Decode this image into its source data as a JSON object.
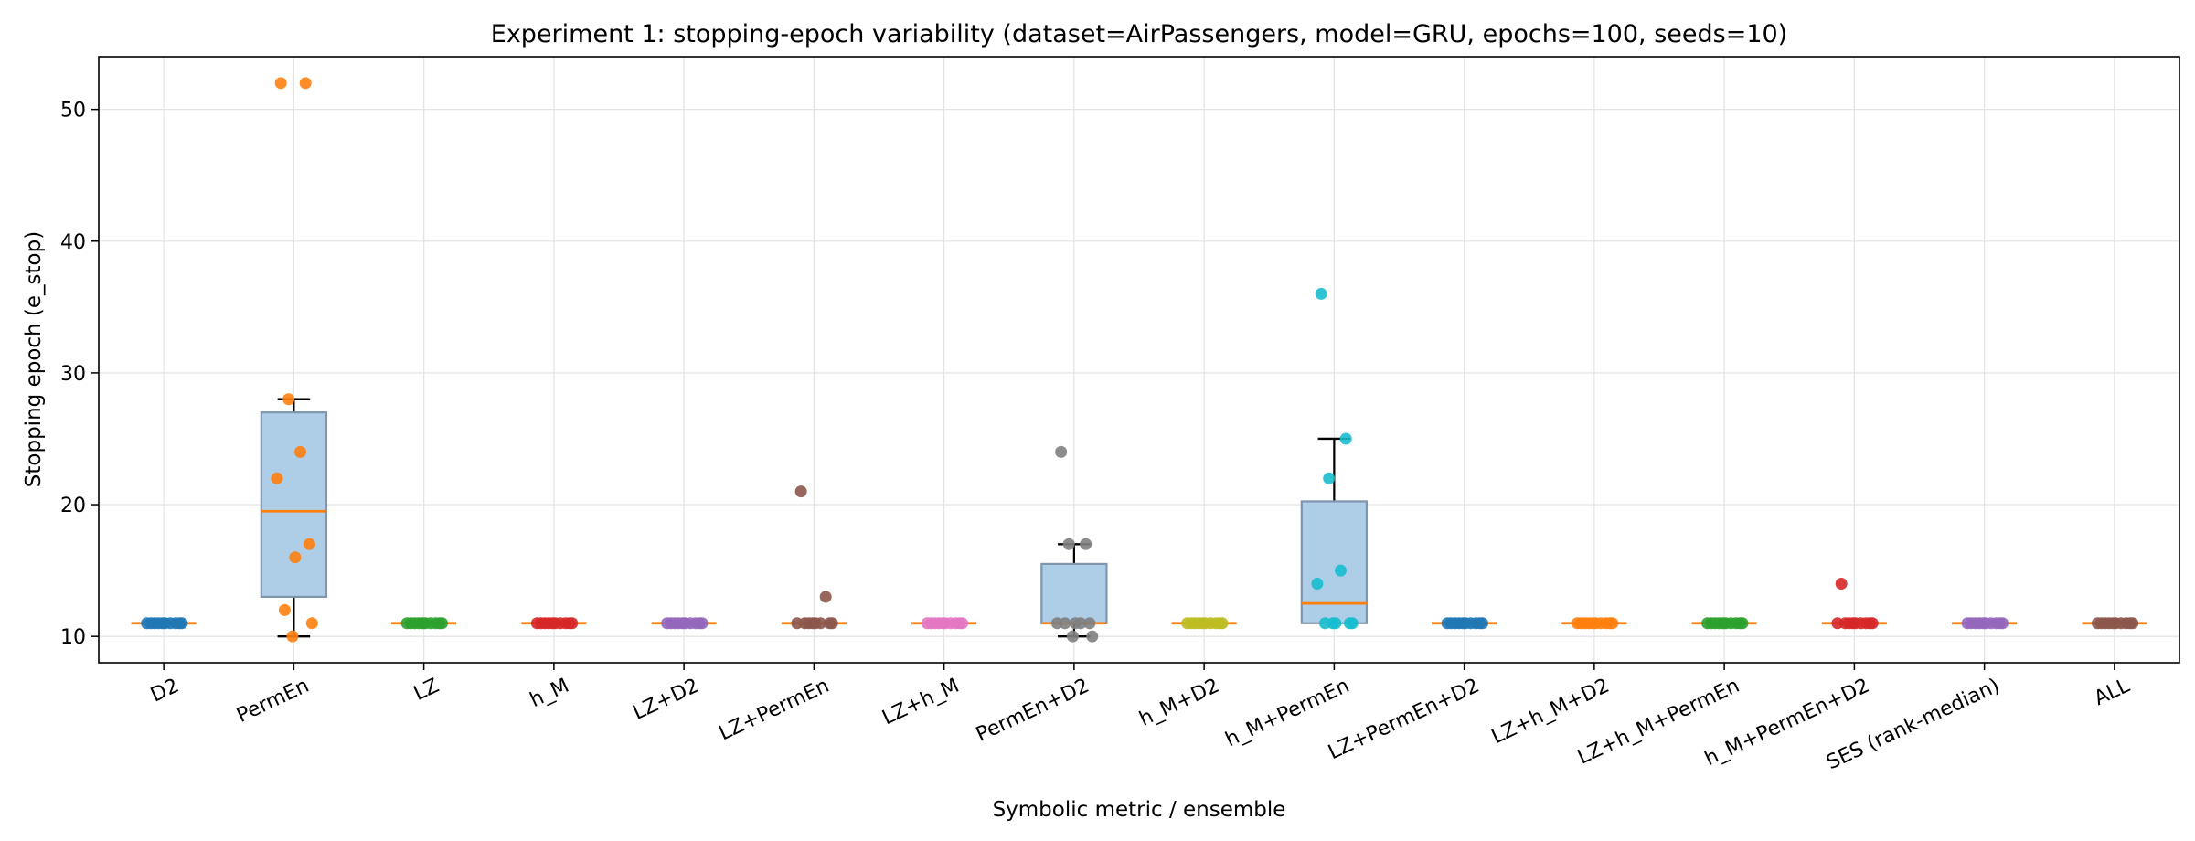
{
  "chart_data": {
    "type": "box",
    "title": "Experiment 1: stopping-epoch variability (dataset=AirPassengers, model=GRU, epochs=100, seeds=10)",
    "xlabel": "Symbolic metric / ensemble",
    "ylabel": "Stopping epoch (e_stop)",
    "ylim": [
      8,
      54
    ],
    "yticks": [
      10,
      20,
      30,
      40,
      50
    ],
    "grid": true,
    "categories": [
      "D2",
      "PermEn",
      "LZ",
      "h_M",
      "LZ+D2",
      "LZ+PermEn",
      "LZ+h_M",
      "PermEn+D2",
      "h_M+D2",
      "h_M+PermEn",
      "LZ+PermEn+D2",
      "LZ+h_M+D2",
      "LZ+h_M+PermEn",
      "h_M+PermEn+D2",
      "SES (rank-median)",
      "ALL"
    ],
    "boxes": [
      {
        "q1": 11,
        "median": 11,
        "q3": 11,
        "whislo": 11,
        "whishi": 11
      },
      {
        "q1": 13,
        "median": 19.5,
        "q3": 27,
        "whislo": 10,
        "whishi": 28
      },
      {
        "q1": 11,
        "median": 11,
        "q3": 11,
        "whislo": 11,
        "whishi": 11
      },
      {
        "q1": 11,
        "median": 11,
        "q3": 11,
        "whislo": 11,
        "whishi": 11
      },
      {
        "q1": 11,
        "median": 11,
        "q3": 11,
        "whislo": 11,
        "whishi": 11
      },
      {
        "q1": 11,
        "median": 11,
        "q3": 11,
        "whislo": 11,
        "whishi": 11
      },
      {
        "q1": 11,
        "median": 11,
        "q3": 11,
        "whislo": 11,
        "whishi": 11
      },
      {
        "q1": 11,
        "median": 11,
        "q3": 15.5,
        "whislo": 10,
        "whishi": 17
      },
      {
        "q1": 11,
        "median": 11,
        "q3": 11,
        "whislo": 11,
        "whishi": 11
      },
      {
        "q1": 11,
        "median": 12.5,
        "q3": 20.25,
        "whislo": 11,
        "whishi": 25
      },
      {
        "q1": 11,
        "median": 11,
        "q3": 11,
        "whislo": 11,
        "whishi": 11
      },
      {
        "q1": 11,
        "median": 11,
        "q3": 11,
        "whislo": 11,
        "whishi": 11
      },
      {
        "q1": 11,
        "median": 11,
        "q3": 11,
        "whislo": 11,
        "whishi": 11
      },
      {
        "q1": 11,
        "median": 11,
        "q3": 11,
        "whislo": 11,
        "whishi": 11
      },
      {
        "q1": 11,
        "median": 11,
        "q3": 11,
        "whislo": 11,
        "whishi": 11
      },
      {
        "q1": 11,
        "median": 11,
        "q3": 11,
        "whislo": 11,
        "whishi": 11
      }
    ],
    "points": [
      [
        11,
        11,
        11,
        11,
        11,
        11,
        11,
        11,
        11,
        11
      ],
      [
        52,
        52,
        28,
        24,
        22,
        17,
        16,
        12,
        11,
        10
      ],
      [
        11,
        11,
        11,
        11,
        11,
        11,
        11,
        11,
        11,
        11
      ],
      [
        11,
        11,
        11,
        11,
        11,
        11,
        11,
        11,
        11,
        11
      ],
      [
        11,
        11,
        11,
        11,
        11,
        11,
        11,
        11,
        11,
        11
      ],
      [
        21,
        13,
        11,
        11,
        11,
        11,
        11,
        11,
        11,
        11
      ],
      [
        11,
        11,
        11,
        11,
        11,
        11,
        11,
        11,
        11,
        11
      ],
      [
        24,
        17,
        17,
        11,
        11,
        11,
        11,
        11,
        10,
        10
      ],
      [
        11,
        11,
        11,
        11,
        11,
        11,
        11,
        11,
        11,
        11
      ],
      [
        36,
        25,
        22,
        15,
        14,
        11,
        11,
        11,
        11,
        11
      ],
      [
        11,
        11,
        11,
        11,
        11,
        11,
        11,
        11,
        11,
        11
      ],
      [
        11,
        11,
        11,
        11,
        11,
        11,
        11,
        11,
        11,
        11
      ],
      [
        11,
        11,
        11,
        11,
        11,
        11,
        11,
        11,
        11,
        11
      ],
      [
        14,
        11,
        11,
        11,
        11,
        11,
        11,
        11,
        11,
        11
      ],
      [
        11,
        11,
        11,
        11,
        11,
        11,
        11,
        11,
        11,
        11
      ],
      [
        11,
        11,
        11,
        11,
        11,
        11,
        11,
        11,
        11,
        11
      ]
    ],
    "point_colors": [
      "#1f77b4",
      "#ff7f0e",
      "#2ca02c",
      "#d62728",
      "#9467bd",
      "#8c564b",
      "#e377c2",
      "#7f7f7f",
      "#bcbd22",
      "#17becf",
      "#1f77b4",
      "#ff7f0e",
      "#2ca02c",
      "#d62728",
      "#9467bd",
      "#8c564b"
    ],
    "box_fill": "#aecde6",
    "box_edge": "#7f96ad",
    "median_color": "#ff7f0e",
    "whisker_color": "#000000"
  }
}
